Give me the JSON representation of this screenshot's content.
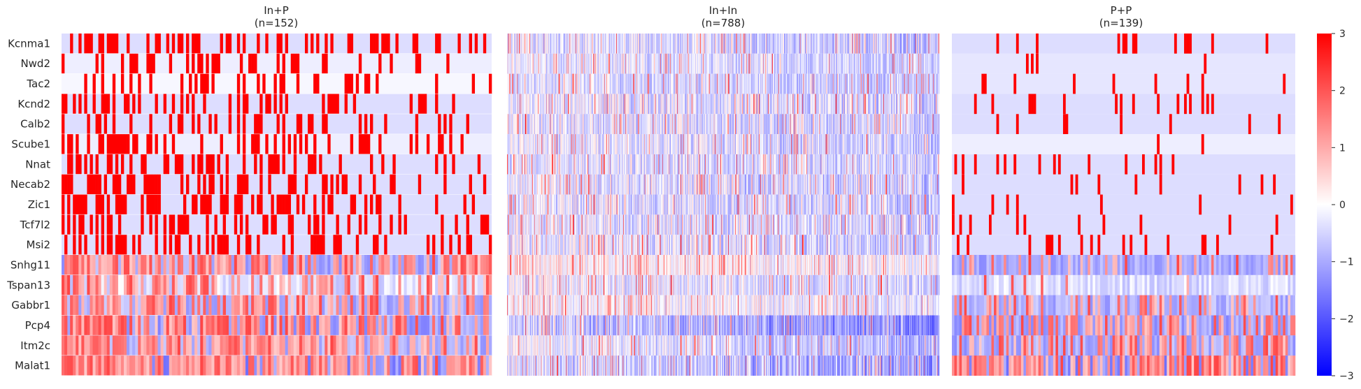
{
  "chart_data": {
    "type": "heatmap",
    "genes": [
      "Kcnma1",
      "Nwd2",
      "Tac2",
      "Kcnd2",
      "Calb2",
      "Scube1",
      "Nnat",
      "Necab2",
      "Zic1",
      "Tcf7l2",
      "Msi2",
      "Snhg11",
      "Tspan13",
      "Gabbr1",
      "Pcp4",
      "Itm2c",
      "Malat1"
    ],
    "panels": [
      {
        "title": "In+P",
        "subtitle": "(n=152)",
        "n_cells": 152,
        "style": "sparse",
        "gene_profiles": [
          {
            "gene": "Kcnma1",
            "base": -0.4,
            "p_hi": 0.45,
            "decay": 0.35
          },
          {
            "gene": "Nwd2",
            "base": -0.2,
            "p_hi": 0.35,
            "decay": 0.75
          },
          {
            "gene": "Tac2",
            "base": -0.1,
            "p_hi": 0.3,
            "decay": 0.8
          },
          {
            "gene": "Kcnd2",
            "base": -0.4,
            "p_hi": 0.5,
            "decay": 0.6
          },
          {
            "gene": "Calb2",
            "base": -0.4,
            "p_hi": 0.55,
            "decay": 0.65
          },
          {
            "gene": "Scube1",
            "base": -0.2,
            "p_hi": 0.45,
            "decay": 0.75
          },
          {
            "gene": "Nnat",
            "base": -0.4,
            "p_hi": 0.45,
            "decay": 0.7
          },
          {
            "gene": "Necab2",
            "base": -0.4,
            "p_hi": 0.5,
            "decay": 0.65
          },
          {
            "gene": "Zic1",
            "base": -0.4,
            "p_hi": 0.55,
            "decay": 0.55
          },
          {
            "gene": "Tcf7l2",
            "base": -0.4,
            "p_hi": 0.5,
            "decay": 0.65
          },
          {
            "gene": "Msi2",
            "base": -0.4,
            "p_hi": 0.45,
            "decay": 0.6
          },
          {
            "gene": "Snhg11",
            "base": -1.0,
            "p_hi": 0.85,
            "decay": 0.35
          },
          {
            "gene": "Tspan13",
            "base": -0.4,
            "p_hi": 0.6,
            "decay": 0.55
          },
          {
            "gene": "Gabbr1",
            "base": -0.9,
            "p_hi": 0.85,
            "decay": 0.45
          },
          {
            "gene": "Pcp4",
            "base": -1.1,
            "p_hi": 0.9,
            "decay": 0.55
          },
          {
            "gene": "Itm2c",
            "base": -0.9,
            "p_hi": 0.9,
            "decay": 0.5
          },
          {
            "gene": "Malat1",
            "base": -1.3,
            "p_hi": 0.95,
            "decay": 0.3
          }
        ]
      },
      {
        "title": "In+In",
        "subtitle": "(n=788)",
        "n_cells": 788,
        "style": "dense",
        "gene_profiles": [
          {
            "gene": "Kcnma1",
            "base": -0.3,
            "amp": 1.4
          },
          {
            "gene": "Nwd2",
            "base": -0.2,
            "amp": 1.2
          },
          {
            "gene": "Tac2",
            "base": -0.3,
            "amp": 1.2
          },
          {
            "gene": "Kcnd2",
            "base": -0.2,
            "amp": 1.5
          },
          {
            "gene": "Calb2",
            "base": -0.2,
            "amp": 1.5
          },
          {
            "gene": "Scube1",
            "base": -0.2,
            "amp": 1.4
          },
          {
            "gene": "Nnat",
            "base": -0.2,
            "amp": 1.4
          },
          {
            "gene": "Necab2",
            "base": -0.2,
            "amp": 1.5
          },
          {
            "gene": "Zic1",
            "base": -0.2,
            "amp": 1.5
          },
          {
            "gene": "Tcf7l2",
            "base": -0.2,
            "amp": 1.5
          },
          {
            "gene": "Msi2",
            "base": -0.2,
            "amp": 1.5
          },
          {
            "gene": "Snhg11",
            "base": 0.3,
            "amp": 1.3
          },
          {
            "gene": "Tspan13",
            "base": -0.1,
            "amp": 1.4
          },
          {
            "gene": "Gabbr1",
            "base": 0.1,
            "amp": 1.3
          },
          {
            "gene": "Pcp4",
            "base": -0.5,
            "amp": 1.4
          },
          {
            "gene": "Itm2c",
            "base": 0.0,
            "amp": 1.3
          },
          {
            "gene": "Malat1",
            "base": -0.3,
            "amp": 1.6
          }
        ]
      },
      {
        "title": "P+P",
        "subtitle": "(n=139)",
        "n_cells": 139,
        "style": "sparse",
        "gene_profiles": [
          {
            "gene": "Kcnma1",
            "base": -0.4,
            "p_hi": 0.08,
            "decay": 0.0
          },
          {
            "gene": "Nwd2",
            "base": -0.3,
            "p_hi": 0.03,
            "decay": 0.0
          },
          {
            "gene": "Tac2",
            "base": -0.3,
            "p_hi": 0.04,
            "decay": 0.0
          },
          {
            "gene": "Kcnd2",
            "base": -0.4,
            "p_hi": 0.1,
            "decay": 0.0
          },
          {
            "gene": "Calb2",
            "base": -0.4,
            "p_hi": 0.04,
            "decay": 0.0
          },
          {
            "gene": "Scube1",
            "base": -0.2,
            "p_hi": 0.02,
            "decay": 0.0
          },
          {
            "gene": "Nnat",
            "base": -0.4,
            "p_hi": 0.08,
            "decay": 0.0
          },
          {
            "gene": "Necab2",
            "base": -0.4,
            "p_hi": 0.06,
            "decay": 0.0
          },
          {
            "gene": "Zic1",
            "base": -0.4,
            "p_hi": 0.08,
            "decay": 0.0
          },
          {
            "gene": "Tcf7l2",
            "base": -0.4,
            "p_hi": 0.05,
            "decay": 0.0
          },
          {
            "gene": "Msi2",
            "base": -0.4,
            "p_hi": 0.1,
            "decay": 0.0
          },
          {
            "gene": "Snhg11",
            "base": -1.0,
            "p_hi": 0.25,
            "decay": 0.3
          },
          {
            "gene": "Tspan13",
            "base": -0.4,
            "p_hi": 0.06,
            "decay": 0.0
          },
          {
            "gene": "Gabbr1",
            "base": -0.9,
            "p_hi": 0.3,
            "decay": 0.0
          },
          {
            "gene": "Pcp4",
            "base": -1.1,
            "p_hi": 0.5,
            "decay": 0.0
          },
          {
            "gene": "Itm2c",
            "base": -1.0,
            "p_hi": 0.4,
            "decay": 0.0
          },
          {
            "gene": "Malat1",
            "base": -1.3,
            "p_hi": 0.7,
            "decay": 0.0
          }
        ]
      }
    ],
    "colorbar": {
      "range": [
        -3,
        3
      ],
      "ticks": [
        -3,
        -2,
        -1,
        0,
        1,
        2,
        3
      ],
      "tick_labels": [
        "−3",
        "−2",
        "−1",
        "0",
        "1",
        "2",
        "3"
      ],
      "colormap": "bwr",
      "color_low": "#0000ff",
      "color_mid": "#ffffff",
      "color_high": "#ff0000"
    },
    "row_separator_color": "#ffffff",
    "grid": false
  }
}
